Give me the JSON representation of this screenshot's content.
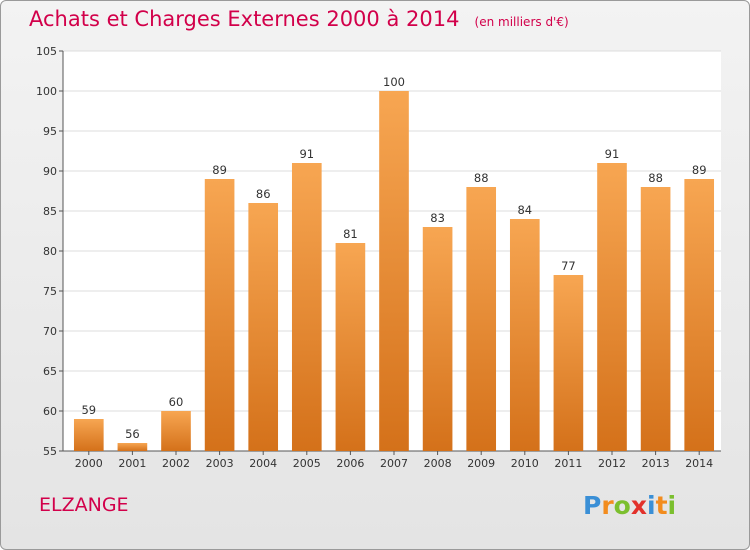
{
  "title": "Achats et Charges Externes 2000 à 2014",
  "unit": "(en milliers d'€)",
  "commune": "ELZANGE",
  "brand": {
    "name": "Proxiti",
    "letters": [
      {
        "char": "P",
        "color": "#3a8fd6"
      },
      {
        "char": "r",
        "color": "#f28c1e"
      },
      {
        "char": "o",
        "color": "#7bbf2e"
      },
      {
        "char": "x",
        "color": "#e2312b"
      },
      {
        "char": "i",
        "color": "#3a8fd6"
      },
      {
        "char": "t",
        "color": "#f28c1e"
      },
      {
        "char": "i",
        "color": "#7bbf2e"
      }
    ]
  },
  "colors": {
    "accent": "#d2004a",
    "bar_top": "#f7a652",
    "bar_bottom": "#d4711a"
  },
  "chart_data": {
    "type": "bar",
    "title": "Achats et Charges Externes 2000 à 2014",
    "subtitle": "(en milliers d'€)",
    "categories": [
      "2000",
      "2001",
      "2002",
      "2003",
      "2004",
      "2005",
      "2006",
      "2007",
      "2008",
      "2009",
      "2010",
      "2011",
      "2012",
      "2013",
      "2014"
    ],
    "values": [
      59,
      56,
      60,
      89,
      86,
      91,
      81,
      100,
      83,
      88,
      84,
      77,
      91,
      88,
      89
    ],
    "ylim": [
      55,
      105
    ],
    "yticks": [
      55,
      60,
      65,
      70,
      75,
      80,
      85,
      90,
      95,
      100,
      105
    ],
    "grid": true
  }
}
